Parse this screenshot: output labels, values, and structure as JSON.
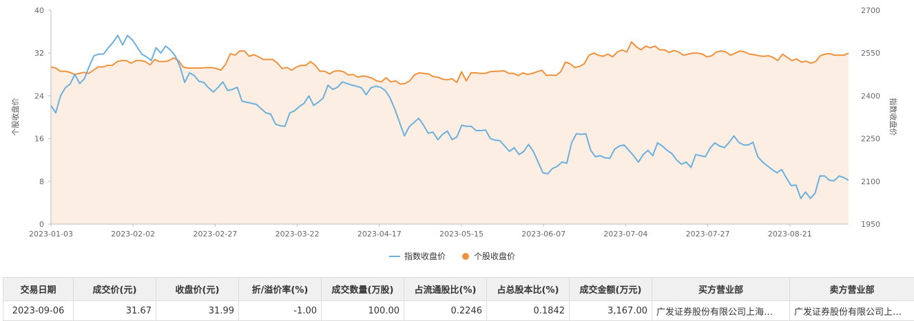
{
  "chart_data": {
    "type": "line",
    "x_ticks": [
      "2023-01-03",
      "2023-02-02",
      "2023-02-27",
      "2023-03-22",
      "2023-04-17",
      "2023-05-15",
      "2023-06-07",
      "2023-07-04",
      "2023-07-27",
      "2023-08-21"
    ],
    "y_left": {
      "label": "个股收盘价",
      "min": 0,
      "max": 40,
      "ticks": [
        0,
        8,
        16,
        24,
        32,
        40
      ]
    },
    "y_right": {
      "label": "指数收盘价",
      "min": 1950,
      "max": 2700,
      "ticks": [
        1950,
        2100,
        2250,
        2400,
        2550,
        2700
      ]
    },
    "legend": {
      "position": "bottom"
    },
    "colors": {
      "index_line": "#6aafdd",
      "stock_line": "#f0913b",
      "stock_fill": "#fdeee3"
    },
    "grid": false,
    "series": [
      {
        "name": "指数收盘价",
        "axis": "left",
        "values": [
          22.2,
          20.8,
          24.0,
          25.5,
          26.2,
          28.0,
          26.3,
          27.2,
          29.5,
          31.5,
          31.8,
          31.8,
          33.0,
          34.0,
          35.3,
          33.5,
          35.3,
          34.5,
          33.2,
          31.8,
          31.3,
          30.6,
          33.0,
          32.0,
          33.3,
          32.6,
          31.5,
          29.5,
          26.5,
          28.3,
          27.8,
          26.7,
          26.5,
          25.5,
          24.7,
          25.6,
          26.6,
          25.0,
          25.2,
          25.6,
          23.0,
          22.8,
          22.6,
          22.4,
          21.6,
          20.8,
          20.6,
          18.7,
          18.4,
          18.3,
          20.8,
          21.2,
          22.0,
          22.6,
          24.0,
          22.2,
          22.8,
          23.6,
          26.0,
          25.2,
          25.6,
          26.6,
          26.3,
          26.0,
          25.8,
          25.5,
          24.2,
          25.5,
          25.8,
          25.6,
          25.0,
          23.6,
          21.5,
          19.0,
          16.5,
          18.2,
          19.0,
          19.8,
          18.5,
          17.0,
          17.2,
          15.8,
          16.8,
          17.4,
          15.8,
          16.3,
          18.5,
          18.3,
          18.3,
          17.5,
          17.5,
          17.6,
          16.0,
          15.7,
          15.6,
          14.6,
          13.6,
          14.3,
          13.0,
          13.6,
          14.9,
          13.6,
          11.6,
          9.6,
          9.4,
          10.4,
          10.8,
          11.6,
          11.4,
          15.2,
          16.9,
          16.8,
          16.9,
          13.8,
          12.6,
          12.8,
          12.4,
          12.3,
          14.0,
          14.6,
          14.8,
          13.8,
          12.8,
          11.6,
          13.0,
          13.8,
          12.8,
          15.2,
          14.6,
          13.8,
          13.2,
          12.0,
          11.2,
          11.6,
          10.6,
          13.0,
          12.8,
          12.6,
          14.2,
          15.2,
          14.6,
          14.3,
          15.3,
          16.5,
          15.3,
          14.8,
          14.8,
          15.3,
          12.6,
          11.6,
          10.9,
          10.2,
          9.6,
          10.2,
          8.6,
          7.2,
          7.3,
          4.8,
          6.0,
          4.8,
          5.8,
          9.0,
          9.0,
          8.2,
          8.1,
          9.0,
          8.7,
          8.2
        ]
      },
      {
        "name": "个股收盘价",
        "axis": "left",
        "values": [
          29.4,
          29.2,
          28.6,
          28.6,
          28.4,
          28.0,
          28.2,
          28.4,
          28.2,
          28.8,
          29.4,
          29.4,
          29.7,
          29.7,
          30.4,
          30.6,
          30.6,
          30.1,
          30.6,
          30.6,
          30.4,
          29.8,
          30.8,
          30.4,
          30.4,
          30.6,
          31.1,
          30.6,
          29.4,
          29.2,
          29.2,
          29.2,
          29.2,
          29.3,
          29.3,
          29.1,
          28.8,
          29.9,
          31.9,
          31.6,
          32.4,
          32.4,
          31.4,
          31.7,
          31.3,
          30.8,
          30.8,
          30.8,
          30.1,
          29.1,
          29.3,
          28.8,
          29.4,
          29.7,
          29.7,
          30.4,
          29.7,
          28.6,
          28.6,
          28.1,
          28.6,
          28.7,
          28.5,
          27.9,
          28.0,
          27.5,
          27.7,
          27.6,
          27.3,
          26.8,
          26.6,
          27.4,
          26.6,
          26.8,
          26.2,
          26.3,
          26.8,
          27.9,
          28.3,
          28.2,
          28.1,
          27.6,
          27.5,
          27.1,
          27.0,
          27.2,
          26.5,
          28.5,
          26.8,
          28.3,
          28.3,
          28.2,
          28.2,
          28.5,
          28.6,
          28.6,
          28.7,
          28.2,
          28.2,
          27.8,
          28.3,
          28.0,
          28.2,
          28.5,
          28.8,
          27.8,
          27.9,
          27.8,
          28.5,
          30.3,
          30.0,
          29.3,
          29.5,
          30.0,
          31.6,
          32.0,
          31.6,
          31.4,
          31.8,
          31.3,
          32.2,
          32.6,
          32.2,
          34.1,
          33.2,
          32.6,
          33.3,
          33.0,
          33.3,
          32.6,
          32.6,
          32.1,
          32.5,
          32.2,
          31.6,
          31.8,
          32.0,
          32.0,
          31.8,
          31.3,
          31.5,
          32.2,
          32.4,
          32.2,
          31.6,
          32.0,
          32.4,
          32.2,
          31.8,
          31.7,
          31.5,
          31.4,
          31.5,
          31.2,
          30.6,
          31.8,
          31.2,
          30.6,
          30.9,
          30.3,
          30.5,
          30.1,
          30.4,
          31.5,
          31.8,
          31.9,
          31.6,
          31.6,
          31.6,
          31.99
        ]
      }
    ]
  },
  "table": {
    "columns": [
      "交易日期",
      "成交价(元)",
      "收盘价(元)",
      "折/溢价率(%)",
      "成交数量(万股)",
      "占流通股比(%)",
      "占总股本比(%)",
      "成交金额(万元)",
      "买方营业部",
      "卖方营业部"
    ],
    "rows": [
      [
        "2023-09-06",
        "31.67",
        "31.99",
        "-1.00",
        "100.00",
        "0.2246",
        "0.1842",
        "3,167.00",
        "广发证券股份有限公司上海…",
        "广发证券股份有限公司上海…"
      ]
    ]
  }
}
